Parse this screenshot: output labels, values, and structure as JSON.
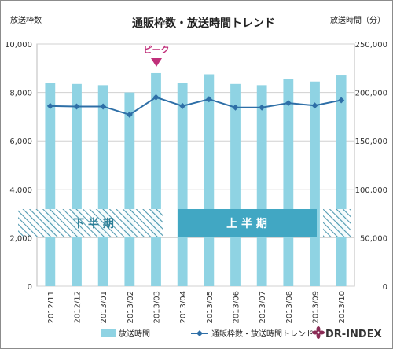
{
  "chart_data": {
    "type": "bar+line",
    "title": "通販枠数・放送時間トレンド",
    "left_axis_title": "放送枠数",
    "right_axis_title": "放送時間（分）",
    "categories": [
      "2012/11",
      "2012/12",
      "2013/01",
      "2013/02",
      "2013/03",
      "2013/04",
      "2013/05",
      "2013/06",
      "2013/07",
      "2013/08",
      "2013/09",
      "2013/10"
    ],
    "series": [
      {
        "name": "放送時間",
        "kind": "bar",
        "axis": "left",
        "color": "#8fd3e3",
        "values": [
          8400,
          8350,
          8300,
          8000,
          8800,
          8400,
          8750,
          8350,
          8300,
          8550,
          8450,
          8700
        ]
      },
      {
        "name": "通販枠数・放送時間トレンド",
        "kind": "line",
        "axis": "right",
        "color": "#2e6fa7",
        "values": [
          186000,
          185500,
          185500,
          177000,
          195000,
          186000,
          193000,
          184500,
          184500,
          189000,
          186500,
          192000
        ]
      }
    ],
    "left_ylim": [
      0,
      10000
    ],
    "right_ylim": [
      0,
      250000
    ],
    "left_ticks": [
      "0",
      "2,000",
      "4,000",
      "6,000",
      "8,000",
      "10,000"
    ],
    "right_ticks": [
      "0",
      "50,000",
      "100,000",
      "150,000",
      "200,000",
      "250,000"
    ],
    "grid": true,
    "legend_position": "bottom",
    "annotations": {
      "peak_label": "ピーク",
      "peak_category": "2013/03",
      "period_lower": "下 半 期",
      "period_upper": "上 半 期"
    },
    "logo_text": "DR-INDEX"
  }
}
